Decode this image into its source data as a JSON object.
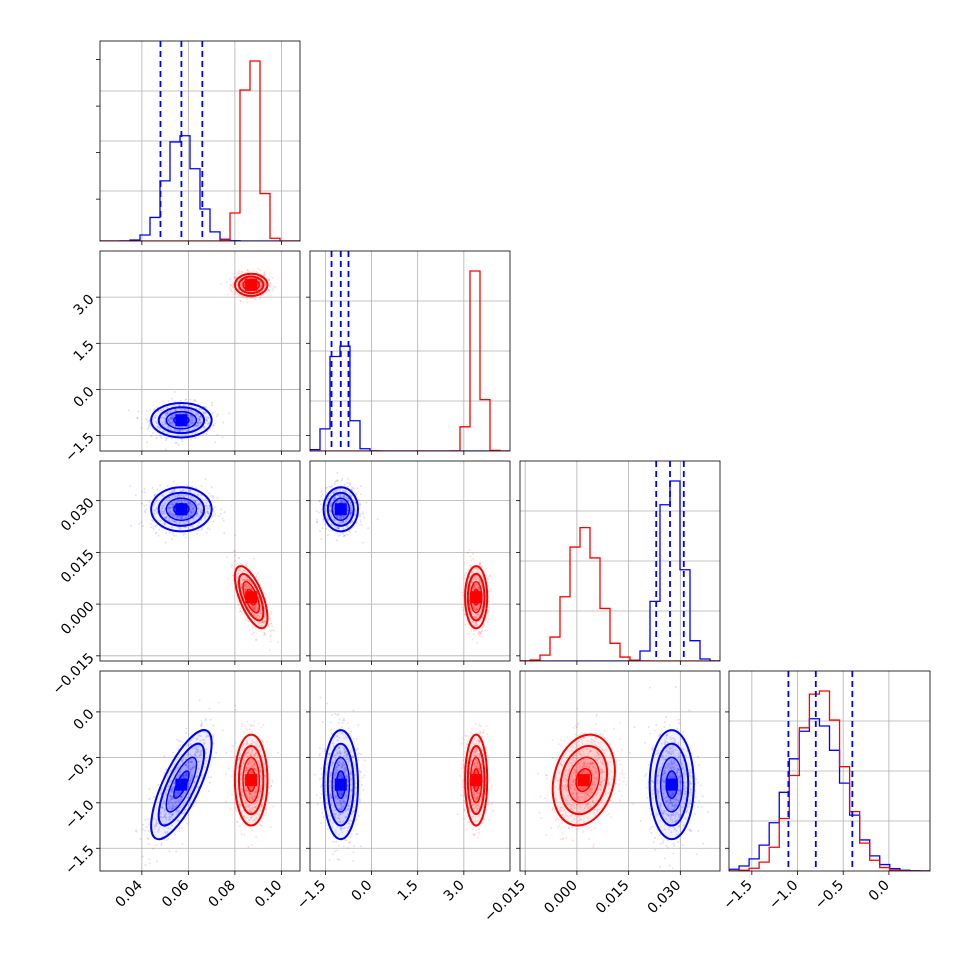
{
  "chart_data": {
    "type": "corner",
    "series_colors": {
      "blue": "#0000ff",
      "red": "#ff0000"
    },
    "params": [
      {
        "ticks": [
          0.04,
          0.06,
          0.08,
          0.1
        ],
        "tick_labels": [
          "0.04",
          "0.06",
          "0.08",
          "0.10"
        ],
        "range": [
          0.022,
          0.108
        ]
      },
      {
        "ticks": [
          -1.5,
          0.0,
          1.5,
          3.0
        ],
        "tick_labels": [
          "−1.5",
          "0.0",
          "1.5",
          "3.0"
        ],
        "range": [
          -2.0,
          4.5
        ]
      },
      {
        "ticks": [
          -0.015,
          0.0,
          0.015,
          0.03
        ],
        "tick_labels": [
          "−0.015",
          "0.000",
          "0.015",
          "0.030"
        ],
        "range": [
          -0.0165,
          0.0415
        ]
      },
      {
        "ticks": [
          -1.5,
          -1.0,
          -0.5,
          0.0
        ],
        "tick_labels": [
          "−1.5",
          "−1.0",
          "−0.5",
          "0.0"
        ],
        "range": [
          -1.75,
          0.45
        ]
      }
    ],
    "blue": {
      "mean": [
        0.057,
        -1.0,
        0.0275,
        -0.8
      ],
      "std": [
        0.0065,
        0.28,
        0.0032,
        0.3
      ],
      "corr": [
        [
          0,
          1,
          0.0
        ],
        [
          0,
          2,
          0.0
        ],
        [
          0,
          3,
          0.75
        ],
        [
          1,
          2,
          0.0
        ],
        [
          1,
          3,
          0.0
        ],
        [
          2,
          3,
          0.0
        ]
      ],
      "quantiles": [
        [
          0.048,
          0.057,
          0.066
        ],
        [
          -1.3,
          -1.0,
          -0.75
        ],
        [
          0.023,
          0.027,
          0.031
        ],
        [
          -1.1,
          -0.8,
          -0.4
        ]
      ]
    },
    "red": {
      "mean": [
        0.087,
        3.4,
        0.002,
        -0.75
      ],
      "std": [
        0.0035,
        0.18,
        0.0045,
        0.25
      ],
      "corr": [
        [
          0,
          1,
          0.0
        ],
        [
          0,
          2,
          -0.65
        ],
        [
          0,
          3,
          0.0
        ],
        [
          1,
          2,
          0.0
        ],
        [
          1,
          3,
          0.0
        ],
        [
          2,
          3,
          0.2
        ]
      ]
    },
    "grid": true
  }
}
